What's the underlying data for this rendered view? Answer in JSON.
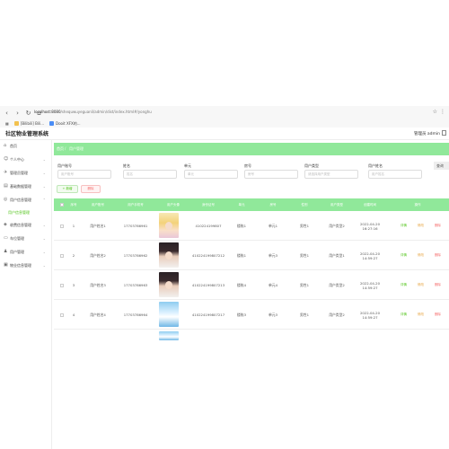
{
  "browser": {
    "url_host": "localhost:8080",
    "url_path": "/shequwuyeguanli/admin/dist/index.html#/yonghu",
    "bookmarks": [
      "[Bilibili] Bili...",
      "Dooit XFX的..."
    ]
  },
  "app": {
    "title": "社区物业管理系统",
    "admin_label": "管理员 admin"
  },
  "sidebar": {
    "items": [
      {
        "label": "首页",
        "icon": "home-icon"
      },
      {
        "label": "个人中心",
        "icon": "user-icon"
      },
      {
        "label": "管理员管理",
        "icon": "admin-icon"
      },
      {
        "label": "基础数据管理",
        "icon": "data-icon"
      },
      {
        "label": "用户信息管理",
        "icon": "info-icon"
      },
      {
        "label": "用户信息管理",
        "icon": "",
        "sub": true
      },
      {
        "label": "收费信息管理",
        "icon": "fee-icon"
      },
      {
        "label": "车位管理",
        "icon": "car-icon"
      },
      {
        "label": "用户管理",
        "icon": "people-icon"
      },
      {
        "label": "物业信息管理",
        "icon": "building-icon"
      }
    ]
  },
  "breadcrumb": {
    "home": "首页",
    "separator": "/",
    "current": "用户管理"
  },
  "filters": [
    {
      "label": "用户账号",
      "placeholder": "用户账号"
    },
    {
      "label": "姓名",
      "placeholder": "姓名"
    },
    {
      "label": "单元",
      "placeholder": "单元"
    },
    {
      "label": "房号",
      "placeholder": "房号"
    },
    {
      "label": "用户类型",
      "placeholder": "请选择用户类型"
    },
    {
      "label": "用户姓名",
      "placeholder": "用户姓名"
    }
  ],
  "query_button": "查询",
  "actions": {
    "add": "+ 新增",
    "delete": "删除"
  },
  "table": {
    "headers": [
      "",
      "序号",
      "用户账号",
      "用户手机号",
      "用户头像",
      "身份证号",
      "单元",
      "房号",
      "性别",
      "用户类型",
      "创建时间",
      "操作"
    ],
    "rows": [
      {
        "index": "1",
        "account": "用户姓名1",
        "phone": "17703786961",
        "avatar": "anime",
        "idcard": "410224199807",
        "unit": "楼栋1",
        "room": "单元1",
        "gender": "男性1",
        "type": "用户类型2",
        "created": "2022-04-20 16:27:16"
      },
      {
        "index": "2",
        "account": "用户姓名2",
        "phone": "17703786962",
        "avatar": "girl",
        "idcard": "410224199807212",
        "unit": "楼栋1",
        "room": "单元3",
        "gender": "男性1",
        "type": "用户类型1",
        "created": "2022-04-20 14:59:27"
      },
      {
        "index": "3",
        "account": "用户姓名3",
        "phone": "17703786963",
        "avatar": "girl",
        "idcard": "410224199807213",
        "unit": "楼栋4",
        "room": "单元4",
        "gender": "男性1",
        "type": "用户类型2",
        "created": "2022-04-20 14:59:27"
      },
      {
        "index": "4",
        "account": "用户姓名4",
        "phone": "17703786964",
        "avatar": "sky",
        "idcard": "410224199807217",
        "unit": "楼栋3",
        "room": "单元3",
        "gender": "男性1",
        "type": "用户类型2",
        "created": "2022-04-20 14:59:27"
      }
    ],
    "row_actions": {
      "view": "详情",
      "edit": "修改",
      "delete": "删除"
    }
  },
  "colors": {
    "accent": "#90e89a",
    "success": "#52c41a",
    "warning": "#e6a23c",
    "danger": "#f56c6c"
  }
}
